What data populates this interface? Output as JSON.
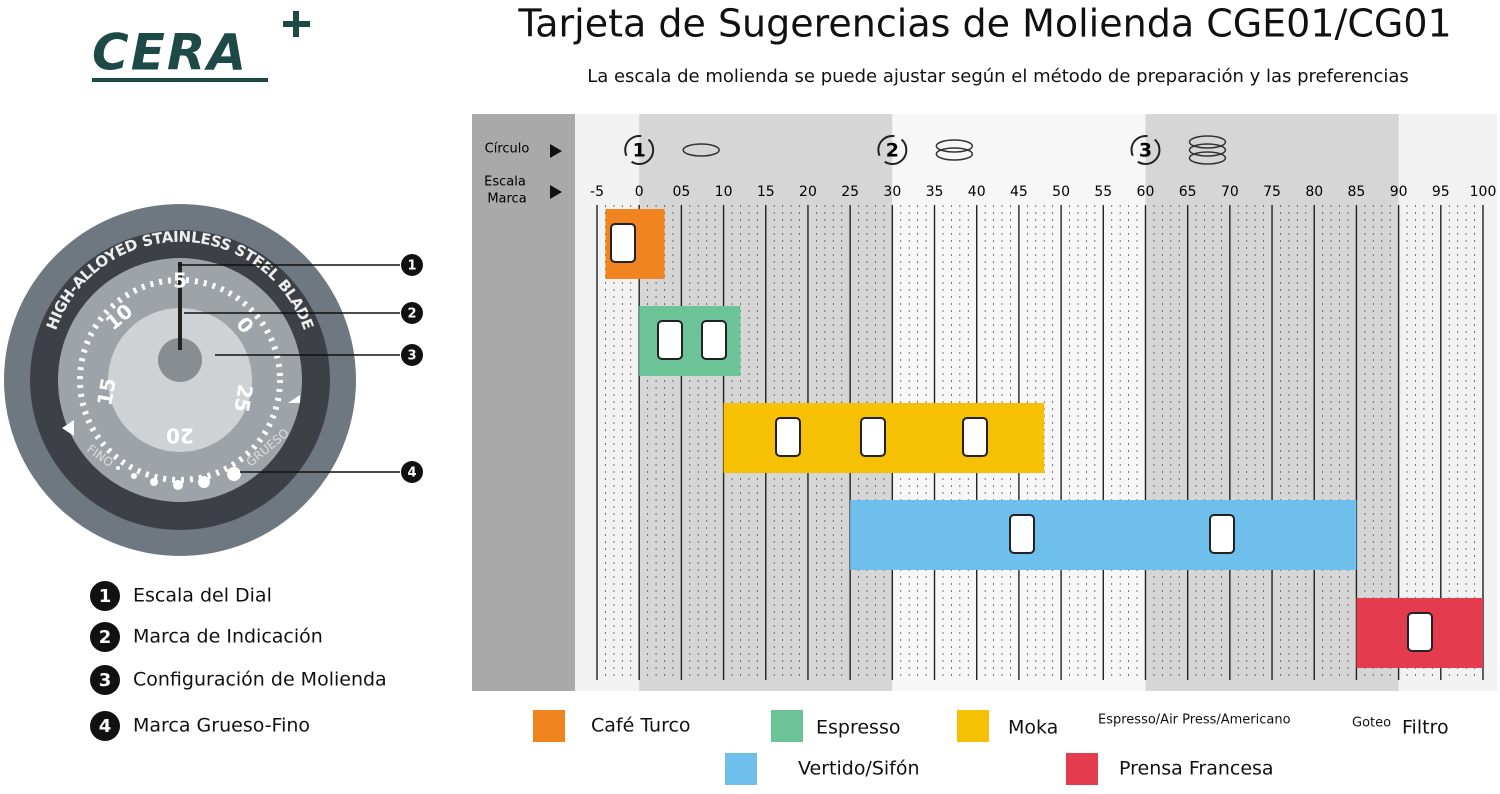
{
  "logo": "CERA",
  "title": "Tarjeta de Sugerencias de Molienda CGE01/CG01",
  "subtitle": "La escala de molienda se puede ajustar según el método de preparación y las preferencias",
  "dial": {
    "blade_text": "HIGH-ALLOYED STAINLESS STEEL BLADE",
    "numbers": [
      "5",
      "10",
      "15",
      "20",
      "25",
      "0"
    ],
    "fine": "FINO",
    "coarse": "GRUESO"
  },
  "parts": [
    {
      "number": "1",
      "label": "Escala del Dial"
    },
    {
      "number": "2",
      "label": "Marca de Indicación"
    },
    {
      "number": "3",
      "label": "Configuración de Molienda"
    },
    {
      "number": "4",
      "label": "Marca Grueso-Fino"
    }
  ],
  "chart_data": {
    "type": "range",
    "row_labels": {
      "circle": "Círculo",
      "scale": [
        "Escala",
        "Marca"
      ]
    },
    "xlim": [
      -5,
      100
    ],
    "xticks": [
      -5,
      0,
      {
        "value": 5,
        "label": "05"
      },
      10,
      15,
      20,
      25,
      30,
      35,
      40,
      45,
      50,
      55,
      60,
      65,
      70,
      75,
      80,
      85,
      90,
      95,
      100
    ],
    "circles": [
      {
        "label": "1",
        "start": 0,
        "end": 30
      },
      {
        "label": "2",
        "start": 30,
        "end": 60
      },
      {
        "label": "3",
        "start": 60,
        "end": 90
      }
    ],
    "bands": [
      {
        "name": "Café Turco",
        "color": "#f0841e",
        "start": -4,
        "end": 3
      },
      {
        "name": "Espresso",
        "color": "#6cc398",
        "start": 0,
        "end": 12
      },
      {
        "name": "Moka",
        "color": "#f6c105",
        "start": 10,
        "end": 48
      },
      {
        "name": "Vertido/Sifón",
        "color": "#6fbfec",
        "start": 25,
        "end": 85
      },
      {
        "name": "Prensa Francesa",
        "color": "#e43c4e",
        "start": 85,
        "end": 100
      }
    ],
    "legend_notes": [
      "Espresso/Air Press/Americano",
      "Goteo",
      "Filtro"
    ]
  }
}
